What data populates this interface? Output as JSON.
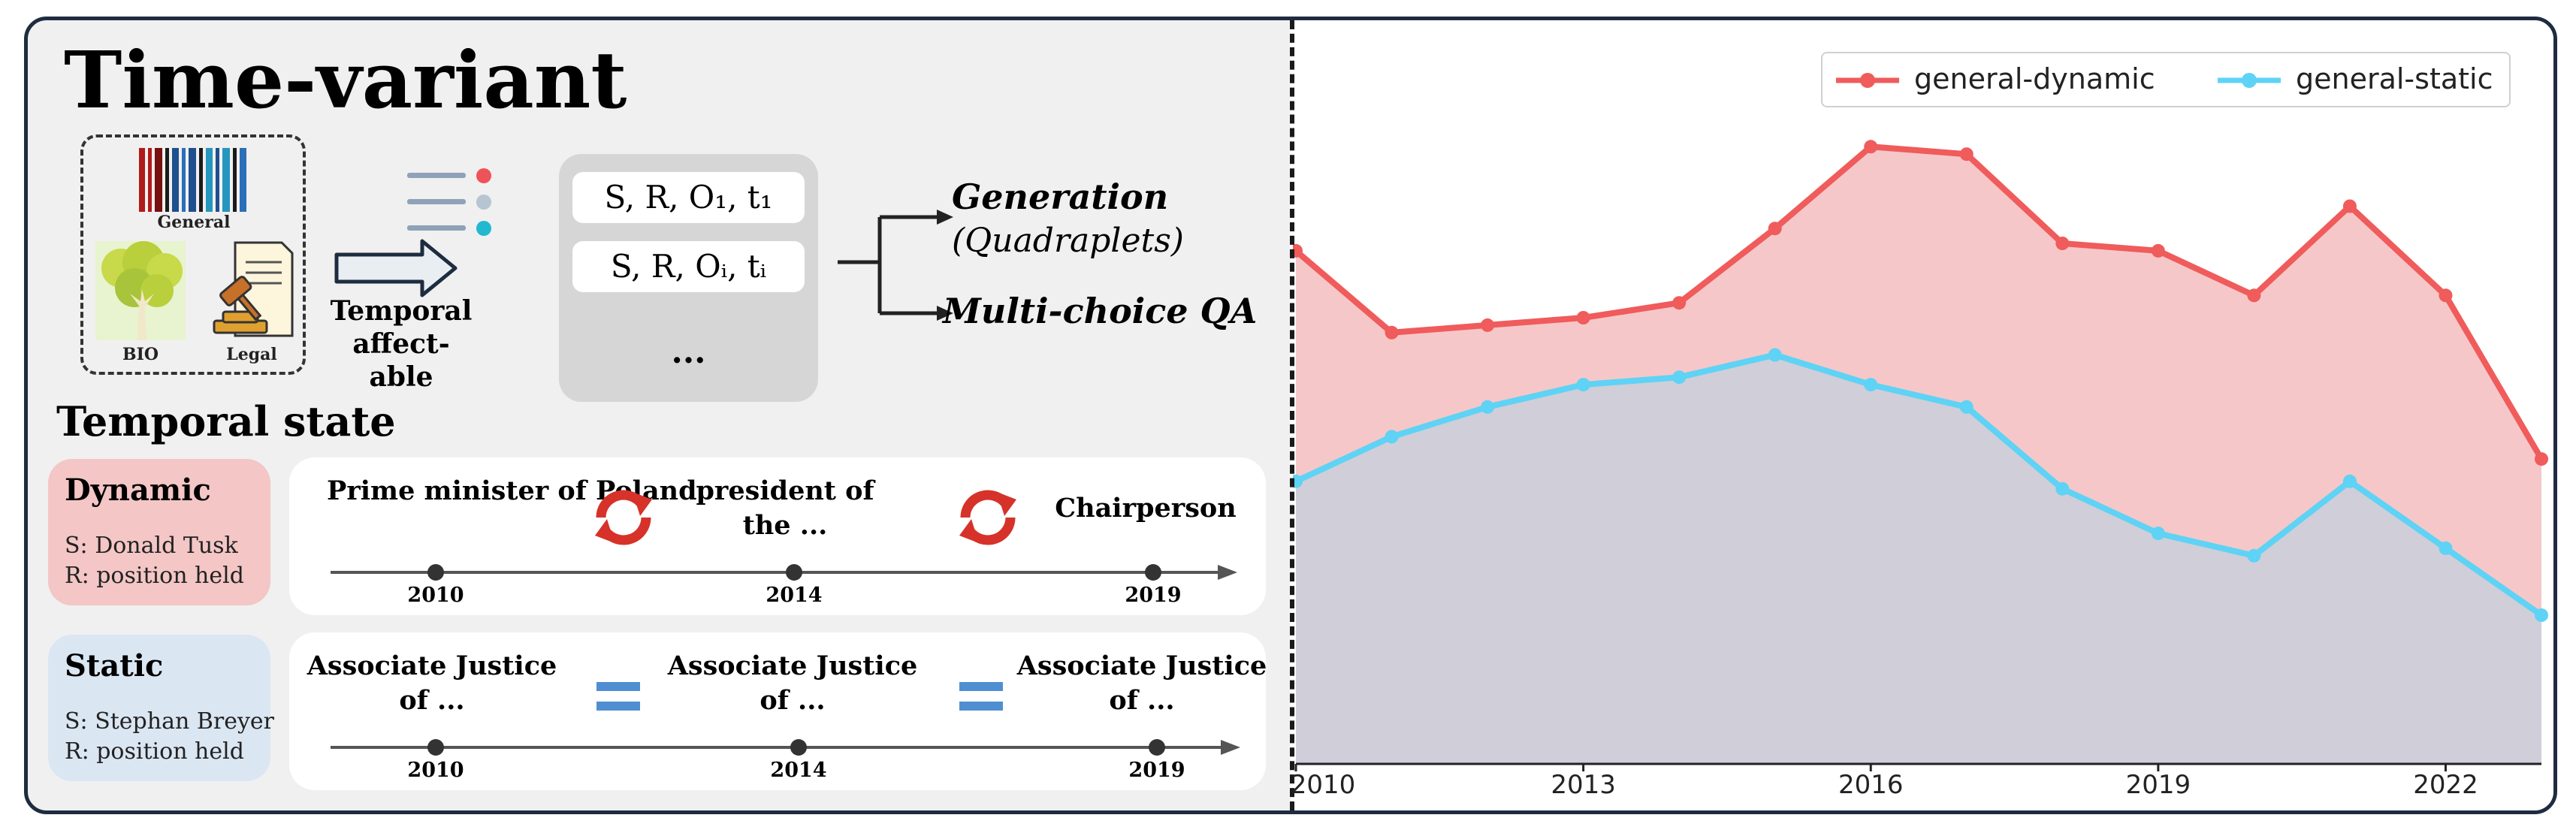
{
  "left": {
    "title": "Time-variant",
    "sources": {
      "general": "General",
      "bio": "BIO",
      "legal": "Legal"
    },
    "affectable": "Temporal affect-able",
    "quadruplets": [
      "S, R, O₁, t₁",
      "S, R, Oᵢ, tᵢ",
      "..."
    ],
    "generation": "Generation",
    "generation_sub": "(Quadraplets)",
    "mcqa": "Multi-choice QA",
    "temporal_state": "Temporal state",
    "dynamic": {
      "title": "Dynamic",
      "subject": "S: Donald Tusk",
      "relation": "R: position held",
      "labels": [
        "Prime minister of Poland",
        "president of the ...",
        "Chairperson"
      ],
      "years": [
        "2010",
        "2014",
        "2019"
      ]
    },
    "static": {
      "title": "Static",
      "subject": "S: Stephan Breyer",
      "relation": "R: position held",
      "labels": [
        "Associate Justice of ...",
        "Associate Justice of ...",
        "Associate Justice of ..."
      ],
      "years": [
        "2010",
        "2014",
        "2019"
      ]
    }
  },
  "chart_data": {
    "type": "area",
    "x": [
      2010,
      2011,
      2012,
      2013,
      2014,
      2015,
      2016,
      2017,
      2018,
      2019,
      2020,
      2021,
      2022,
      2023
    ],
    "xticks": [
      "2010",
      "2013",
      "2016",
      "2019",
      "2022"
    ],
    "xlim": [
      2010,
      2023
    ],
    "ylim": [
      0,
      1
    ],
    "series": [
      {
        "name": "general-dynamic",
        "color": "#f05b5b",
        "fill": "#f6c7c8",
        "values": [
          0.69,
          0.58,
          0.59,
          0.6,
          0.62,
          0.72,
          0.83,
          0.82,
          0.7,
          0.69,
          0.63,
          0.75,
          0.63,
          0.41
        ]
      },
      {
        "name": "general-static",
        "color": "#5ed3f5",
        "fill": "#cfced9",
        "values": [
          0.38,
          0.44,
          0.48,
          0.51,
          0.52,
          0.55,
          0.51,
          0.48,
          0.37,
          0.31,
          0.28,
          0.38,
          0.29,
          0.2
        ]
      }
    ],
    "legend": "top-right",
    "grid": false
  }
}
